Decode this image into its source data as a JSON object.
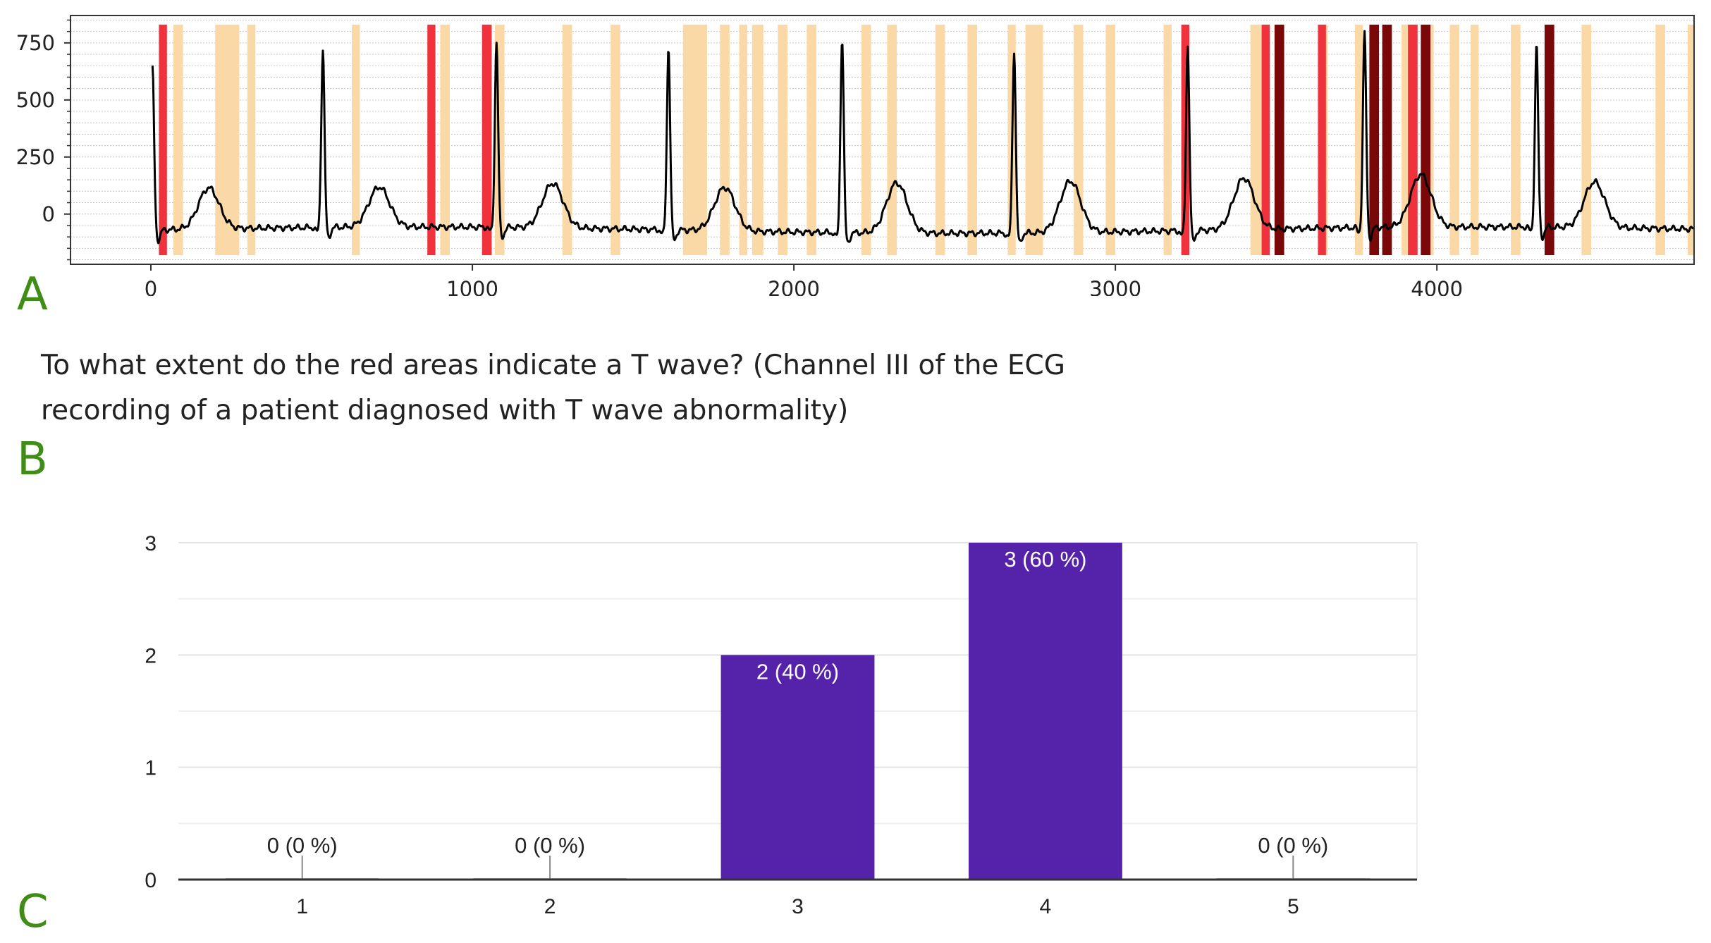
{
  "panels": {
    "a": "A",
    "b": "B",
    "c": "C"
  },
  "question": {
    "line1": "To what extent do the red areas indicate a T wave? (Channel III of the ECG",
    "line2": "recording of a patient diagnosed with T wave abnormality)"
  },
  "colors": {
    "trace": "#000000",
    "highlight_light": "#fbd9a6",
    "highlight_red": "#f0323c",
    "highlight_dark": "#7a0808",
    "bar": "#5522aa",
    "label_green": "#3f8d16"
  },
  "chart_data": [
    {
      "type": "line",
      "title": "",
      "xlabel": "",
      "ylabel": "",
      "xlim": [
        -250,
        4800
      ],
      "ylim": [
        -220,
        870
      ],
      "x_ticks": [
        0,
        1000,
        2000,
        3000,
        4000
      ],
      "x_tick_labels": [
        "0",
        "1000",
        "2000",
        "3000",
        "4000"
      ],
      "y_ticks": [
        0,
        250,
        500,
        750
      ],
      "y_tick_labels": [
        "0",
        "250",
        "500",
        "750"
      ],
      "grid": true,
      "baseline": -70,
      "r_peaks": [
        {
          "x": 5,
          "amp": 640
        },
        {
          "x": 535,
          "amp": 710
        },
        {
          "x": 1075,
          "amp": 740
        },
        {
          "x": 1610,
          "amp": 730
        },
        {
          "x": 2150,
          "amp": 780
        },
        {
          "x": 2685,
          "amp": 730
        },
        {
          "x": 3225,
          "amp": 740
        },
        {
          "x": 3775,
          "amp": 780
        },
        {
          "x": 4310,
          "amp": 730
        }
      ],
      "t_waves": [
        {
          "x": 180,
          "amp": 110
        },
        {
          "x": 710,
          "amp": 105
        },
        {
          "x": 1250,
          "amp": 125
        },
        {
          "x": 1785,
          "amp": 120
        },
        {
          "x": 2320,
          "amp": 150
        },
        {
          "x": 2860,
          "amp": 155
        },
        {
          "x": 3400,
          "amp": 155
        },
        {
          "x": 3950,
          "amp": 160
        },
        {
          "x": 4490,
          "amp": 130
        }
      ],
      "highlight_light": [
        [
          70,
          100
        ],
        [
          200,
          275
        ],
        [
          300,
          325
        ],
        [
          625,
          650
        ],
        [
          900,
          930
        ],
        [
          1070,
          1100
        ],
        [
          1280,
          1310
        ],
        [
          1430,
          1460
        ],
        [
          1655,
          1730
        ],
        [
          1770,
          1800
        ],
        [
          1830,
          1855
        ],
        [
          1870,
          1905
        ],
        [
          1950,
          1980
        ],
        [
          2040,
          2070
        ],
        [
          2210,
          2240
        ],
        [
          2290,
          2320
        ],
        [
          2440,
          2470
        ],
        [
          2540,
          2570
        ],
        [
          2665,
          2690
        ],
        [
          2720,
          2775
        ],
        [
          2870,
          2900
        ],
        [
          2970,
          3000
        ],
        [
          3150,
          3175
        ],
        [
          3420,
          3470
        ],
        [
          3640,
          3660
        ],
        [
          3745,
          3770
        ],
        [
          3890,
          3920
        ],
        [
          3960,
          3990
        ],
        [
          4040,
          4070
        ],
        [
          4105,
          4130
        ],
        [
          4230,
          4260
        ],
        [
          4450,
          4480
        ],
        [
          4680,
          4710
        ],
        [
          4780,
          4800
        ]
      ],
      "highlight_red": [
        [
          25,
          50
        ],
        [
          860,
          885
        ],
        [
          1030,
          1060
        ],
        [
          3205,
          3230
        ],
        [
          3455,
          3480
        ],
        [
          3630,
          3655
        ],
        [
          3910,
          3940
        ]
      ],
      "highlight_dark": [
        [
          3495,
          3525
        ],
        [
          3790,
          3820
        ],
        [
          3830,
          3860
        ],
        [
          3950,
          3980
        ],
        [
          4335,
          4365
        ]
      ]
    },
    {
      "type": "bar",
      "title": "",
      "xlabel": "",
      "ylabel": "",
      "categories": [
        "1",
        "2",
        "3",
        "4",
        "5"
      ],
      "values": [
        0,
        0,
        2,
        3,
        0
      ],
      "labels": [
        "0 (0 %)",
        "0 (0 %)",
        "2 (40 %)",
        "3 (60 %)",
        "0 (0 %)"
      ],
      "ylim": [
        0,
        3
      ],
      "y_ticks": [
        0,
        1,
        2,
        3
      ],
      "y_tick_labels": [
        "0",
        "1",
        "2",
        "3"
      ],
      "grid": true
    }
  ]
}
